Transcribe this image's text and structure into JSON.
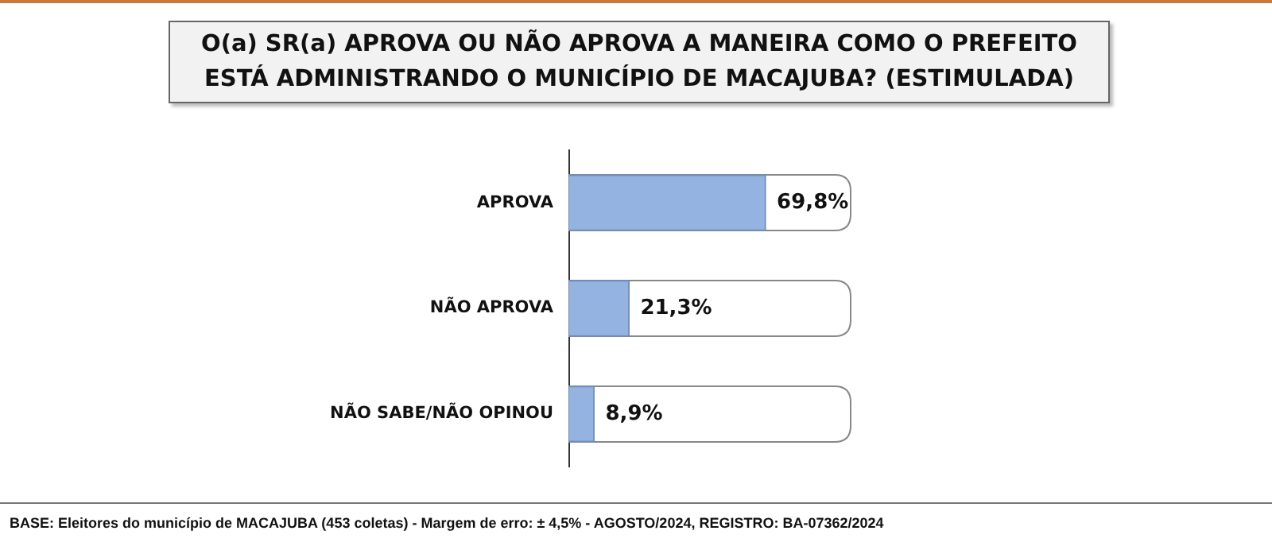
{
  "chart_data": {
    "type": "bar",
    "orientation": "horizontal",
    "title": "O(a) SR(a) APROVA OU NÃO APROVA A MANEIRA COMO O PREFEITO ESTÁ ADMINISTRANDO O MUNICÍPIO DE MACAJUBA? (ESTIMULADA)",
    "categories": [
      "APROVA",
      "NÃO APROVA",
      "NÃO SABE/NÃO OPINOU"
    ],
    "values": [
      69.8,
      21.3,
      8.9
    ],
    "value_labels": [
      "69,8%",
      "21,3%",
      "8,9%"
    ],
    "color": "#95b3e0",
    "xlim": [
      0,
      100
    ],
    "tick_labels": "y",
    "grid": false,
    "legend": false,
    "annotations": [
      "BASE: Eleitores do município de MACAJUBA (453 coletas) - Margem de erro: ± 4,5% - AGOSTO/2024, REGISTRO: BA-07362/2024"
    ]
  }
}
